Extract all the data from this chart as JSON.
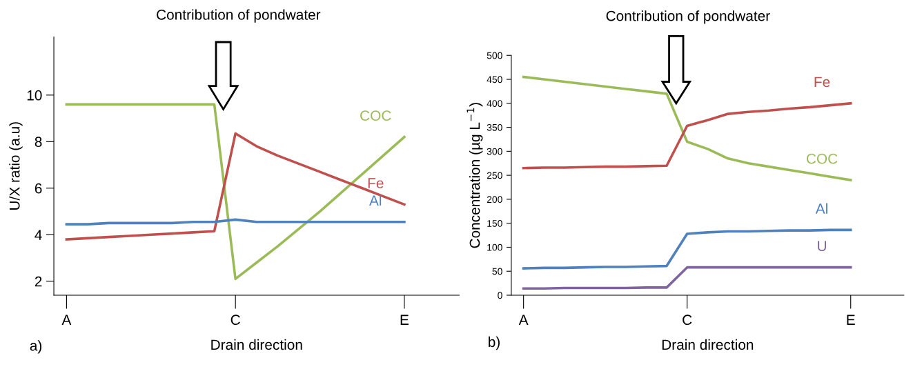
{
  "chart_data": [
    {
      "type": "line",
      "title": "Contribution of pondwater",
      "xlabel": "Drain direction",
      "ylabel": "U/X ratio (a.u)",
      "categories": [
        "A",
        null,
        null,
        null,
        null,
        null,
        null,
        null,
        "C",
        null,
        null,
        null,
        null,
        null,
        null,
        null,
        "E"
      ],
      "ylim": [
        1.4,
        12.5
      ],
      "yticks": [
        2,
        4,
        6,
        8,
        10
      ],
      "legend": false,
      "grid": false,
      "marker": "none",
      "line_style": "solid",
      "annotations": [
        "a)"
      ],
      "series": [
        {
          "name": "COC",
          "color": "#9bbb59",
          "values": [
            9.6,
            9.6,
            9.6,
            9.6,
            9.6,
            9.6,
            9.6,
            9.6,
            2.1,
            2.8,
            3.5,
            4.25,
            5.0,
            5.8,
            6.6,
            7.4,
            8.2
          ]
        },
        {
          "name": "Fe",
          "color": "#c0504d",
          "values": [
            3.8,
            3.85,
            3.9,
            3.95,
            4.0,
            4.05,
            4.1,
            4.15,
            8.35,
            7.8,
            7.4,
            7.05,
            6.7,
            6.35,
            6.0,
            5.65,
            5.3
          ]
        },
        {
          "name": "Al",
          "color": "#4f81bd",
          "values": [
            4.45,
            4.45,
            4.5,
            4.5,
            4.5,
            4.5,
            4.55,
            4.55,
            4.65,
            4.55,
            4.55,
            4.55,
            4.55,
            4.55,
            4.55,
            4.55,
            4.55
          ]
        }
      ]
    },
    {
      "type": "line",
      "title": "Contribution of pondwater",
      "xlabel": "Drain direction",
      "ylabel": "Concentration (µg L$^{−1}$)",
      "categories": [
        "A",
        null,
        null,
        null,
        null,
        null,
        null,
        null,
        "C",
        null,
        null,
        null,
        null,
        null,
        null,
        null,
        "E"
      ],
      "ylim": [
        0,
        500
      ],
      "yticks": [
        0,
        50,
        100,
        150,
        200,
        250,
        300,
        350,
        400,
        450,
        500
      ],
      "legend": false,
      "grid": false,
      "marker": "none",
      "line_style": "solid",
      "annotations": [
        "b)"
      ],
      "series": [
        {
          "name": "COC",
          "color": "#9bbb59",
          "values": [
            455,
            450,
            445,
            440,
            435,
            430,
            425,
            420,
            320,
            305,
            285,
            275,
            268,
            261,
            254,
            247,
            240
          ]
        },
        {
          "name": "Fe",
          "color": "#c0504d",
          "values": [
            265,
            266,
            266,
            267,
            268,
            268,
            269,
            270,
            353,
            365,
            378,
            382,
            385,
            389,
            392,
            396,
            400
          ]
        },
        {
          "name": "Al",
          "color": "#4f81bd",
          "values": [
            56,
            57,
            57,
            58,
            59,
            59,
            60,
            61,
            128,
            131,
            133,
            133,
            134,
            135,
            135,
            136,
            136
          ]
        },
        {
          "name": "U",
          "color": "#8064a2",
          "values": [
            14,
            14,
            15,
            15,
            15,
            15,
            16,
            16,
            58,
            58,
            58,
            58,
            58,
            58,
            58,
            58,
            58
          ]
        }
      ]
    }
  ]
}
